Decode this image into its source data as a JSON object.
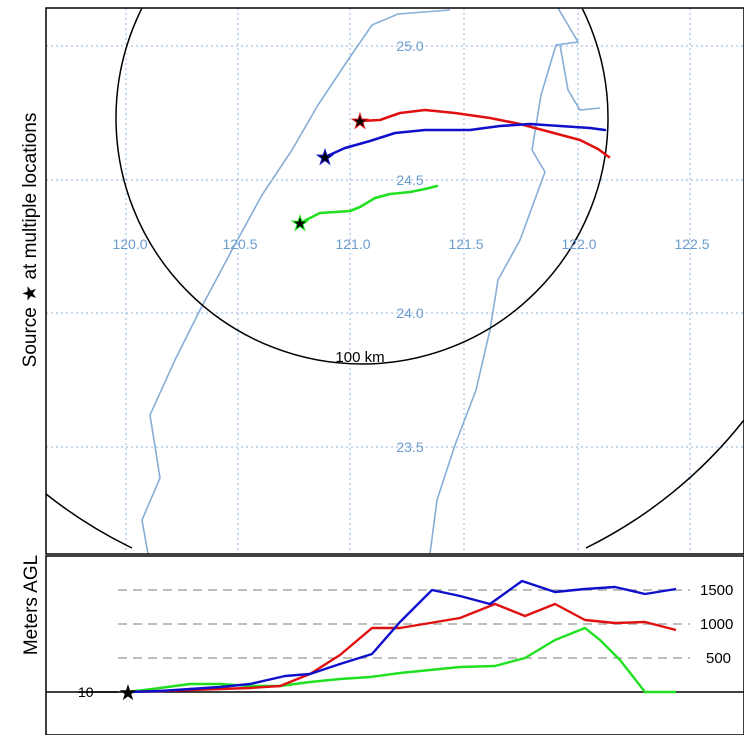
{
  "map": {
    "side_label": "Source ★ at multiple locations",
    "range_label": "100 km",
    "lon_ticks": [
      "120.0",
      "120.5",
      "121.0",
      "121.5",
      "122.0",
      "122.5"
    ],
    "lat_ticks": [
      "25.0",
      "24.5",
      "24.0",
      "23.5"
    ],
    "label_color": "#6a9ccf",
    "grid_color": "#8fb3db",
    "coast_color": "#86aed6"
  },
  "profile": {
    "ylabel": "Meters AGL",
    "level_labels": [
      "1500",
      "1000",
      "500"
    ],
    "base_label": "10"
  },
  "trajectories": [
    {
      "color": "#e01010",
      "start": [
        121.0,
        24.73
      ]
    },
    {
      "color": "#1010cc",
      "start": [
        120.87,
        24.59
      ]
    },
    {
      "color": "#20e020",
      "start": [
        120.76,
        24.33
      ]
    }
  ]
}
